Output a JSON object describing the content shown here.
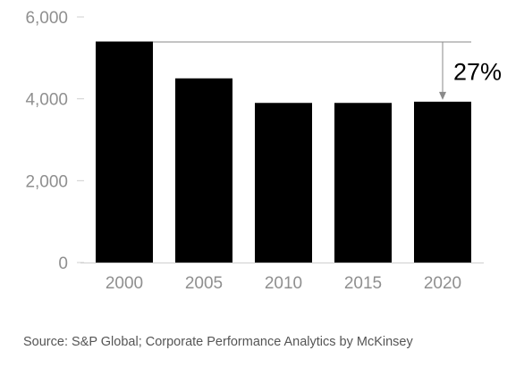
{
  "chart_data": {
    "type": "bar",
    "categories": [
      "2000",
      "2005",
      "2010",
      "2015",
      "2020"
    ],
    "values": [
      5400,
      4500,
      3900,
      3900,
      3930
    ],
    "ylim": [
      0,
      6000
    ],
    "yticks": [
      0,
      2000,
      4000,
      6000
    ],
    "ytick_labels": [
      "0",
      "2,000",
      "4,000",
      "6,000"
    ],
    "title": "",
    "xlabel": "",
    "ylabel": "",
    "grid": false,
    "annotation": {
      "label": "27%",
      "from_category": "2000",
      "to_category": "2020"
    },
    "colors": {
      "bar": "#000000",
      "axis": "#cfcfcf",
      "tick_label": "#8f8f8f",
      "annotation_line": "#8a8a8a"
    }
  },
  "source": "Source: S&P Global; Corporate Performance Analytics by McKinsey"
}
